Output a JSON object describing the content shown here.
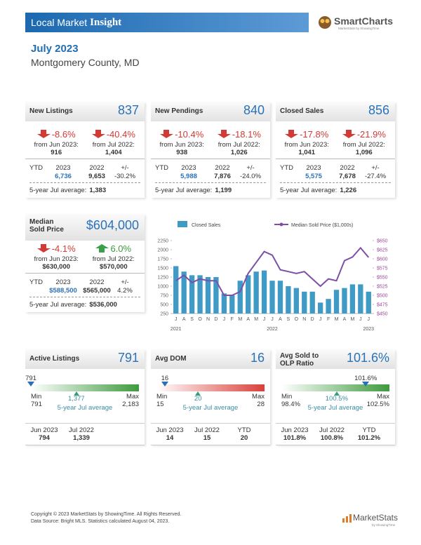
{
  "header": {
    "brand_light": "Local Market",
    "brand_bold": "Insight",
    "logo": "SmartCharts",
    "logo_tagline": "MarketStats by ShowingTime"
  },
  "report": {
    "period": "July 2023",
    "area": "Montgomery County, MD"
  },
  "metric_cards": [
    {
      "title": "New Listings",
      "value": "837",
      "changes": [
        {
          "change": "-8.6%",
          "label": "from Jun 2023:",
          "base": "916"
        },
        {
          "change": "-40.4%",
          "label": "from Jul 2022:",
          "base": "1,404"
        }
      ],
      "ytd": {
        "label": "YTD",
        "headers": [
          "2023",
          "2022",
          "+/-"
        ],
        "values": [
          "6,736",
          "9,653",
          "-30.2%"
        ]
      },
      "average": {
        "label": "5-year Jul average:",
        "value": "1,383"
      }
    },
    {
      "title": "New Pendings",
      "value": "840",
      "changes": [
        {
          "change": "-10.4%",
          "label": "from Jun 2023:",
          "base": "938"
        },
        {
          "change": "-18.1%",
          "label": "from Jul 2022:",
          "base": "1,026"
        }
      ],
      "ytd": {
        "label": "YTD",
        "headers": [
          "2023",
          "2022",
          "+/-"
        ],
        "values": [
          "5,988",
          "7,876",
          "-24.0%"
        ]
      },
      "average": {
        "label": "5-year Jul average:",
        "value": "1,199"
      }
    },
    {
      "title": "Closed Sales",
      "value": "856",
      "changes": [
        {
          "change": "-17.8%",
          "label": "from Jun 2023:",
          "base": "1,041"
        },
        {
          "change": "-21.9%",
          "label": "from Jul 2022:",
          "base": "1,096"
        }
      ],
      "ytd": {
        "label": "YTD",
        "headers": [
          "2023",
          "2022",
          "+/-"
        ],
        "values": [
          "5,575",
          "7,678",
          "-27.4%"
        ]
      },
      "average": {
        "label": "5-year Jul average:",
        "value": "1,226"
      }
    },
    {
      "title": "Median Sold Price",
      "value": "$604,000",
      "changes": [
        {
          "change": "-4.1%",
          "label": "from Jun 2023:",
          "base": "$630,000"
        },
        {
          "change": "6.0%",
          "label": "from Jul 2022:",
          "base": "$570,000"
        }
      ],
      "ytd": {
        "label": "YTD",
        "headers": [
          "2023",
          "2022",
          "+/-"
        ],
        "values": [
          "$588,500",
          "$565,000",
          "4.2%"
        ]
      },
      "average": {
        "label": "5-year Jul average:",
        "value": "$536,000"
      }
    }
  ],
  "chart_data": {
    "type": "combo",
    "categories": [
      "J",
      "A",
      "S",
      "O",
      "N",
      "D",
      "J",
      "F",
      "M",
      "A",
      "M",
      "J",
      "J",
      "A",
      "S",
      "O",
      "N",
      "D",
      "J",
      "F",
      "M",
      "A",
      "M",
      "J",
      "J"
    ],
    "year_labels": [
      "2021",
      "2022",
      "2023"
    ],
    "series": [
      {
        "name": "Closed Sales",
        "type": "bar",
        "color": "#3f9bc6",
        "values": [
          1550,
          1400,
          1300,
          1300,
          1250,
          1250,
          800,
          750,
          1150,
          1300,
          1400,
          1430,
          1150,
          1150,
          1000,
          950,
          850,
          850,
          550,
          650,
          900,
          950,
          1050,
          1050,
          850
        ]
      },
      {
        "name": "Median Sold Price ($1,000s)",
        "type": "line",
        "axis": "y2",
        "color": "#7d4fa6",
        "values": [
          540,
          555,
          535,
          545,
          540,
          540,
          500,
          500,
          510,
          560,
          590,
          620,
          610,
          570,
          565,
          560,
          565,
          545,
          525,
          545,
          540,
          595,
          605,
          630,
          604
        ]
      }
    ],
    "ylim": [
      250,
      2250
    ],
    "yticks": [
      250,
      500,
      750,
      1000,
      1250,
      1500,
      1750,
      2000,
      2250
    ],
    "y2lim": [
      450,
      650
    ],
    "y2ticks": [
      {
        "value": 450,
        "label": "$450"
      },
      {
        "value": 475,
        "label": "$475"
      },
      {
        "value": 500,
        "label": "$500"
      },
      {
        "value": 525,
        "label": "$525"
      },
      {
        "value": 550,
        "label": "$550"
      },
      {
        "value": 575,
        "label": "$575"
      },
      {
        "value": 600,
        "label": "$600"
      },
      {
        "value": 625,
        "label": "$625"
      },
      {
        "value": 650,
        "label": "$650"
      }
    ]
  },
  "gauge_cards": [
    {
      "title": "Active Listings",
      "value": "791",
      "current": "791",
      "color": "#3e9a3e",
      "min_label": "Min",
      "min": "791",
      "max_label": "Max",
      "max": "2,183",
      "average": "1,377",
      "average_label": "5-year Jul average",
      "history": [
        {
          "label": "Jun 2023",
          "value": "794"
        },
        {
          "label": "Jul 2022",
          "value": "1,339"
        }
      ]
    },
    {
      "title": "Avg DOM",
      "value": "16",
      "current": "16",
      "color": "#d9403a",
      "min_label": "Min",
      "min": "15",
      "max_label": "Max",
      "max": "28",
      "average": "20",
      "average_label": "5-year Jul average",
      "history": [
        {
          "label": "Jun 2023",
          "value": "14"
        },
        {
          "label": "Jul 2022",
          "value": "15"
        },
        {
          "label": "YTD",
          "value": "20"
        }
      ]
    },
    {
      "title": "Avg Sold to OLP Ratio",
      "value": "101.6%",
      "current": "101.6%",
      "color": "#3e9a3e",
      "min_label": "Min",
      "min": "98.4%",
      "max_label": "Max",
      "max": "102.5%",
      "average": "100.5%",
      "average_label": "5-year Jul average",
      "history": [
        {
          "label": "Jun 2023",
          "value": "101.8%"
        },
        {
          "label": "Jul 2022",
          "value": "100.8%"
        },
        {
          "label": "YTD",
          "value": "101.2%"
        }
      ]
    }
  ],
  "footer": {
    "copyright": "Copyright © 2023 MarketStats by ShowingTime. All Rights Reserved.",
    "source": "Data Source: Bright MLS. Statistics calculated August 04, 2023.",
    "logo": "MarketStats",
    "logo_tagline": "by ShowingTime"
  }
}
